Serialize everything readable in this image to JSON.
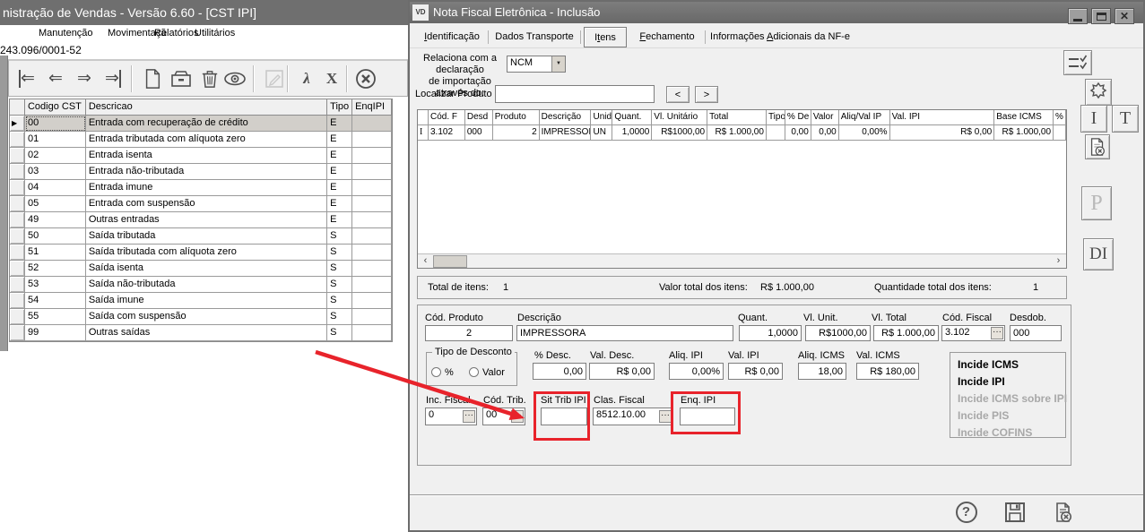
{
  "icons": {
    "combo_arrow": "▼",
    "scroll_left": "‹",
    "scroll_right": "›",
    "row_marker": "▶",
    "grid_row_marker": "I",
    "close_glyph": "✕",
    "help_glyph": "?"
  },
  "left_window": {
    "title": "nistração de Vendas - Versão 6.60 - [CST IPI]",
    "menu_items": [
      "Manutenção",
      "Movimentaçã",
      "Relatórios",
      "Utilitários"
    ],
    "cnpj": "243.096/0001-52",
    "toolbar": [
      {
        "name": "first-record-icon",
        "type": "glyph",
        "glyph": "⇐",
        "bar": "left"
      },
      {
        "name": "previous-record-icon",
        "type": "glyph",
        "glyph": "⇐"
      },
      {
        "name": "next-record-icon",
        "type": "glyph",
        "glyph": "⇒"
      },
      {
        "name": "last-record-icon",
        "type": "glyph",
        "glyph": "⇒",
        "bar": "right"
      },
      {
        "name": "separator"
      },
      {
        "name": "new-record-icon",
        "type": "svg",
        "svg": "page"
      },
      {
        "name": "open-record-icon",
        "type": "svg",
        "svg": "drawer"
      },
      {
        "name": "delete-record-icon",
        "type": "svg",
        "svg": "trash"
      },
      {
        "name": "view-record-icon",
        "type": "svg",
        "svg": "eye"
      },
      {
        "name": "separator"
      },
      {
        "name": "edit-record-icon",
        "type": "svg",
        "svg": "edit",
        "disabled": true
      },
      {
        "name": "separator"
      },
      {
        "name": "export-pdf-icon",
        "type": "glyph",
        "glyph": "λ",
        "serif": true
      },
      {
        "name": "export-excel-icon",
        "type": "glyph",
        "glyph": "X",
        "serif": true
      },
      {
        "name": "separator"
      },
      {
        "name": "close-window-icon",
        "type": "svg",
        "svg": "circlex"
      }
    ],
    "table": {
      "headers": [
        "Codigo CST",
        "Descricao",
        "Tipo",
        "EnqIPI"
      ],
      "rows": [
        {
          "codigo": "00",
          "descricao": "Entrada com recuperação de crédito",
          "tipo": "E",
          "enq_ipi": "",
          "selected": true
        },
        {
          "codigo": "01",
          "descricao": "Entrada tributada com alíquota zero",
          "tipo": "E",
          "enq_ipi": ""
        },
        {
          "codigo": "02",
          "descricao": "Entrada isenta",
          "tipo": "E",
          "enq_ipi": ""
        },
        {
          "codigo": "03",
          "descricao": "Entrada não-tributada",
          "tipo": "E",
          "enq_ipi": ""
        },
        {
          "codigo": "04",
          "descricao": "Entrada imune",
          "tipo": "E",
          "enq_ipi": ""
        },
        {
          "codigo": "05",
          "descricao": "Entrada com suspensão",
          "tipo": "E",
          "enq_ipi": ""
        },
        {
          "codigo": "49",
          "descricao": "Outras entradas",
          "tipo": "E",
          "enq_ipi": ""
        },
        {
          "codigo": "50",
          "descricao": "Saída tributada",
          "tipo": "S",
          "enq_ipi": ""
        },
        {
          "codigo": "51",
          "descricao": "Saída tributada com alíquota zero",
          "tipo": "S",
          "enq_ipi": ""
        },
        {
          "codigo": "52",
          "descricao": "Saída isenta",
          "tipo": "S",
          "enq_ipi": ""
        },
        {
          "codigo": "53",
          "descricao": "Saída não-tributada",
          "tipo": "S",
          "enq_ipi": ""
        },
        {
          "codigo": "54",
          "descricao": "Saída imune",
          "tipo": "S",
          "enq_ipi": ""
        },
        {
          "codigo": "55",
          "descricao": "Saída com suspensão",
          "tipo": "S",
          "enq_ipi": ""
        },
        {
          "codigo": "99",
          "descricao": "Outras saídas",
          "tipo": "S",
          "enq_ipi": ""
        }
      ]
    }
  },
  "right_window": {
    "title_badge": "VD",
    "title": "Nota Fiscal Eletrônica - Inclusão",
    "tabs": [
      {
        "label": "Identificação",
        "accel": 0,
        "selected": false
      },
      {
        "label": "Dados Transporte",
        "accel": null,
        "selected": false
      },
      {
        "label": "Itens",
        "accel": 1,
        "selected": true
      },
      {
        "label": "Fechamento",
        "accel": 0,
        "selected": false
      },
      {
        "label": "Informações Adicionais da NF-e",
        "accel": 12,
        "selected": false
      }
    ],
    "import_declaration": {
      "line1": "Relaciona com a declaração",
      "line2": "de importação através do:",
      "value": "NCM"
    },
    "search": {
      "label": "Localizar Produto",
      "value": "",
      "prev": "<",
      "next": ">"
    },
    "items_grid": {
      "headers": [
        "",
        "Cód. F",
        "Desd",
        "Produto",
        "Descrição",
        "Unid",
        "Quant.",
        "Vl. Unitário",
        "Total",
        "Tipo",
        "% De",
        "Valor",
        "Aliq/Val IP",
        "Val. IPI",
        "Base ICMS",
        "%"
      ],
      "rows": [
        [
          "3.102",
          "000",
          "2",
          "IMPRESSOR",
          "UN",
          "1,0000",
          "R$1000,00",
          "R$ 1.000,00",
          "",
          "0,00",
          "0,00",
          "0,00%",
          "R$ 0,00",
          "R$ 1.000,00",
          ""
        ]
      ]
    },
    "totals": {
      "total_items_label": "Total de itens:",
      "total_items": "1",
      "total_value_label": "Valor total dos itens:",
      "total_value": "R$ 1.000,00",
      "total_qty_label": "Quantidade total dos itens:",
      "total_qty": "1"
    },
    "detail": {
      "cod_produto": {
        "label": "Cód. Produto",
        "value": "2"
      },
      "descricao": {
        "label": "Descrição",
        "value": "IMPRESSORA"
      },
      "quant": {
        "label": "Quant.",
        "value": "1,0000"
      },
      "vl_unit": {
        "label": "Vl. Unit.",
        "value": "R$1000,00"
      },
      "vl_total": {
        "label": "Vl. Total",
        "value": "R$ 1.000,00"
      },
      "cod_fiscal": {
        "label": "Cód. Fiscal",
        "value": "3.102"
      },
      "desdob": {
        "label": "Desdob.",
        "value": "000"
      },
      "tipo_desconto": {
        "label": "Tipo de Desconto",
        "options": [
          "%",
          "Valor"
        ]
      },
      "perc_desc": {
        "label": "% Desc.",
        "value": "0,00"
      },
      "val_desc": {
        "label": "Val. Desc.",
        "value": "R$ 0,00"
      },
      "aliq_ipi": {
        "label": "Aliq. IPI",
        "value": "0,00%"
      },
      "val_ipi": {
        "label": "Val. IPI",
        "value": "R$ 0,00"
      },
      "aliq_icms": {
        "label": "Aliq. ICMS",
        "value": "18,00"
      },
      "val_icms": {
        "label": "Val. ICMS",
        "value": "R$ 180,00"
      },
      "inc_fiscal": {
        "label": "Inc. Fiscal",
        "value": "0"
      },
      "cod_trib": {
        "label": "Cód. Trib.",
        "value": "00"
      },
      "sit_trib_ipi": {
        "label": "Sit Trib IPI",
        "value": ""
      },
      "clas_fiscal": {
        "label": "Clas. Fiscal",
        "value": "8512.10.00"
      },
      "enq_ipi": {
        "label": "Enq. IPI",
        "value": ""
      }
    },
    "incide_panel": [
      {
        "label": "Incide ICMS",
        "enabled": true
      },
      {
        "label": "Incide IPI",
        "enabled": true
      },
      {
        "label": "Incide ICMS sobre IPI",
        "enabled": false
      },
      {
        "label": "Incide PIS",
        "enabled": false
      },
      {
        "label": "Incide COFINS",
        "enabled": false
      }
    ],
    "side_toolbar": {
      "i_label": "I",
      "t_label": "T",
      "p_label": "P",
      "di_label": "DI"
    },
    "colors": {
      "title_bar": "#6f6f6f",
      "annotation_red": "#e8232b",
      "selected_row": "#d2cfca",
      "disabled_text": "#a8a8a8"
    }
  }
}
